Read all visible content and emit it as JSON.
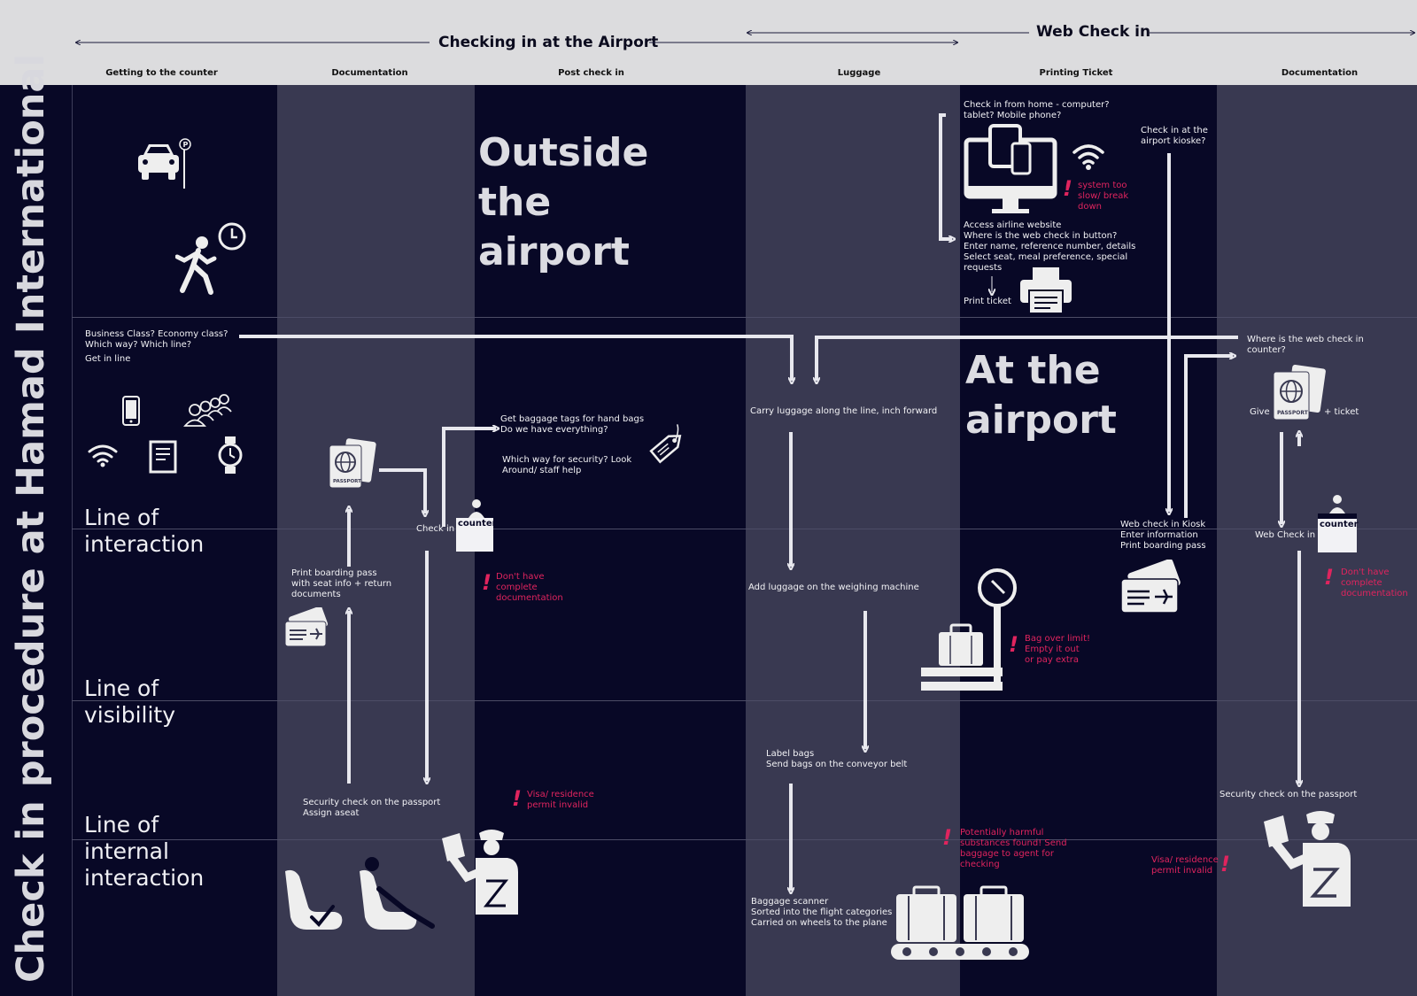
{
  "header": {
    "section_airport": "Checking in at the Airport",
    "section_web": "Web Check in",
    "columns": [
      "Getting to the counter",
      "Documentation",
      "Post check in",
      "Luggage",
      "Printing Ticket",
      "Documentation"
    ]
  },
  "title": "Check in procedure at Hamad International",
  "rows": {
    "line_interaction": [
      "Line of",
      "interaction"
    ],
    "line_visibility": [
      "Line of",
      "visibility"
    ],
    "line_internal": [
      "Line of",
      "internal",
      "interaction"
    ]
  },
  "big_labels": {
    "outside": [
      "Outside",
      "the",
      "airport"
    ],
    "at": [
      "At the",
      "airport"
    ]
  },
  "steps": {
    "class_q": [
      "Business Class? Economy class?",
      "Which way?  Which line?",
      "Get in line"
    ],
    "baggage_tags": [
      "Get baggage tags for hand bags",
      "Do we have everything?"
    ],
    "security_way": [
      "Which way for security? Look",
      "Around/ staff help"
    ],
    "check_in": "Check in",
    "counter": "counter",
    "print_pass": [
      "Print boarding pass",
      "with seat info + return",
      "documents"
    ],
    "security_check": [
      "Security check on the passport",
      "Assign aseat"
    ],
    "carry_luggage": "Carry luggage along the line, inch forward",
    "add_luggage": "Add luggage on the weighing machine",
    "label_bags": [
      "Label bags",
      "Send bags on the conveyor belt"
    ],
    "baggage_scanner": [
      "Baggage scanner",
      "Sorted into the flight categories",
      "Carried on wheels to the plane"
    ],
    "check_home": [
      "Check in from home - computer?",
      "tablet? Mobile phone?"
    ],
    "access_web": [
      "Access airline website",
      "Where is the web check in button?",
      "Enter name, reference number, details",
      "Select seat, meal preference, special",
      "requests"
    ],
    "print_ticket": "Print ticket",
    "kiosk_q": [
      "Check in at the",
      "airport kioske?"
    ],
    "web_kiosk": [
      "Web check in Kiosk",
      "Enter information",
      "Print boarding pass"
    ],
    "where_web": [
      "Where is the web check in",
      "counter?"
    ],
    "give": "Give",
    "plus_ticket": "+  ticket",
    "web_counter": "Web Check in",
    "security_check2": "Security check on the passport",
    "passport": "PASSPORT"
  },
  "fails": {
    "no_docs": [
      "Don't have",
      "complete",
      "documentation"
    ],
    "visa": [
      "Visa/ residence",
      "permit invalid"
    ],
    "system": [
      "system too",
      "slow/ break",
      "down"
    ],
    "bag_limit": [
      "Bag over limit!",
      "Empty it out",
      "or pay extra"
    ],
    "harmful": [
      "Potentially harmful",
      "substances found! Send",
      "baggage to agent for",
      "checking"
    ],
    "no_docs2": [
      "Don't have",
      "complete",
      "documentation"
    ],
    "visa2": [
      "Visa/ residence",
      "permit invalid"
    ]
  },
  "colors": {
    "dark": "#080826",
    "light": "#393951",
    "fail": "#e0245e",
    "ink": "#f0f0f4"
  }
}
